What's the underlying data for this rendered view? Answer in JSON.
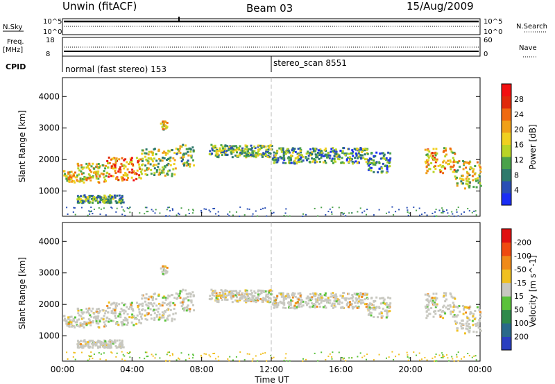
{
  "header": {
    "station": "Unwin (fitACF)",
    "beam": "Beam 03",
    "date": "15/Aug/2009"
  },
  "status_panels": {
    "nsky_label": "N.Sky",
    "nsky_ticks": [
      "10^5",
      "10^0"
    ],
    "nsearch_label": "N.Search",
    "nsearch_ticks": [
      "10^5",
      "10^0"
    ],
    "freq_label": "Freq.",
    "freq_unit": "[MHz]",
    "freq_ticks": [
      "18",
      "8"
    ],
    "nave_label": "Nave",
    "nave_ticks": [
      "60",
      "0"
    ],
    "cpid_label": "CPID",
    "cpid_segments": [
      {
        "name": "normal (fast stereo) 153",
        "start_hr": 0
      },
      {
        "name": "stereo_scan 8551",
        "start_hr": 12
      }
    ]
  },
  "chart_data": [
    {
      "type": "heatmap",
      "panel": "power",
      "ylabel": "Slant Range [km]",
      "ylim": [
        200,
        4600
      ],
      "yticks": [
        1000,
        2000,
        3000,
        4000
      ],
      "xlim": [
        0,
        24
      ],
      "colorbar": {
        "label": "Power [dB]",
        "ticks": [
          "4",
          "8",
          "12",
          "16",
          "20",
          "24",
          "28"
        ],
        "colors": [
          "#1a2ef5",
          "#2a4fb5",
          "#2f7a6c",
          "#4aa24a",
          "#b8d426",
          "#f0d020",
          "#f0a018",
          "#ef6a10",
          "#e02a0a",
          "#f21010"
        ]
      },
      "echo_regions": [
        {
          "t0": 0.0,
          "t1": 0.8,
          "r0": 1300,
          "r1": 1700,
          "level": 0.55
        },
        {
          "t0": 0.8,
          "t1": 2.5,
          "r0": 1300,
          "r1": 1900,
          "level": 0.55
        },
        {
          "t0": 2.5,
          "t1": 4.5,
          "r0": 1350,
          "r1": 2100,
          "level": 0.7
        },
        {
          "t0": 4.5,
          "t1": 6.5,
          "r0": 1500,
          "r1": 2400,
          "level": 0.45
        },
        {
          "t0": 6.5,
          "t1": 7.5,
          "r0": 1800,
          "r1": 2500,
          "level": 0.4
        },
        {
          "t0": 0.8,
          "t1": 3.5,
          "r0": 650,
          "r1": 900,
          "level": 0.35
        },
        {
          "t0": 8.4,
          "t1": 12.0,
          "r0": 2100,
          "r1": 2500,
          "level": 0.35
        },
        {
          "t0": 12.0,
          "t1": 17.5,
          "r0": 1900,
          "r1": 2400,
          "level": 0.3
        },
        {
          "t0": 17.5,
          "t1": 18.8,
          "r0": 1600,
          "r1": 2300,
          "level": 0.25
        },
        {
          "t0": 20.8,
          "t1": 22.5,
          "r0": 1600,
          "r1": 2400,
          "level": 0.6
        },
        {
          "t0": 22.5,
          "t1": 24.0,
          "r0": 1100,
          "r1": 2000,
          "level": 0.5
        },
        {
          "t0": 5.6,
          "t1": 6.0,
          "r0": 2950,
          "r1": 3250,
          "level": 0.5
        }
      ]
    },
    {
      "type": "heatmap",
      "panel": "velocity",
      "ylabel": "Slant Range [km]",
      "xlabel": "Time UT",
      "ylim": [
        200,
        4600
      ],
      "yticks": [
        1000,
        2000,
        3000,
        4000
      ],
      "xlim": [
        0,
        24
      ],
      "xtick_labels": [
        "00:00",
        "04:00",
        "08:00",
        "12:00",
        "16:00",
        "20:00",
        "00:00"
      ],
      "colorbar": {
        "label": "Velocity [m s^-1]",
        "ticks": [
          "200",
          "100",
          "50",
          "15",
          "-15",
          "-50",
          "-100",
          "-200"
        ],
        "colors": [
          "#2a3fc0",
          "#2a6a8a",
          "#2f8a4a",
          "#5ac23a",
          "#c8c8c0",
          "#f0c020",
          "#f08a18",
          "#ef4a10",
          "#e01010"
        ]
      }
    }
  ]
}
